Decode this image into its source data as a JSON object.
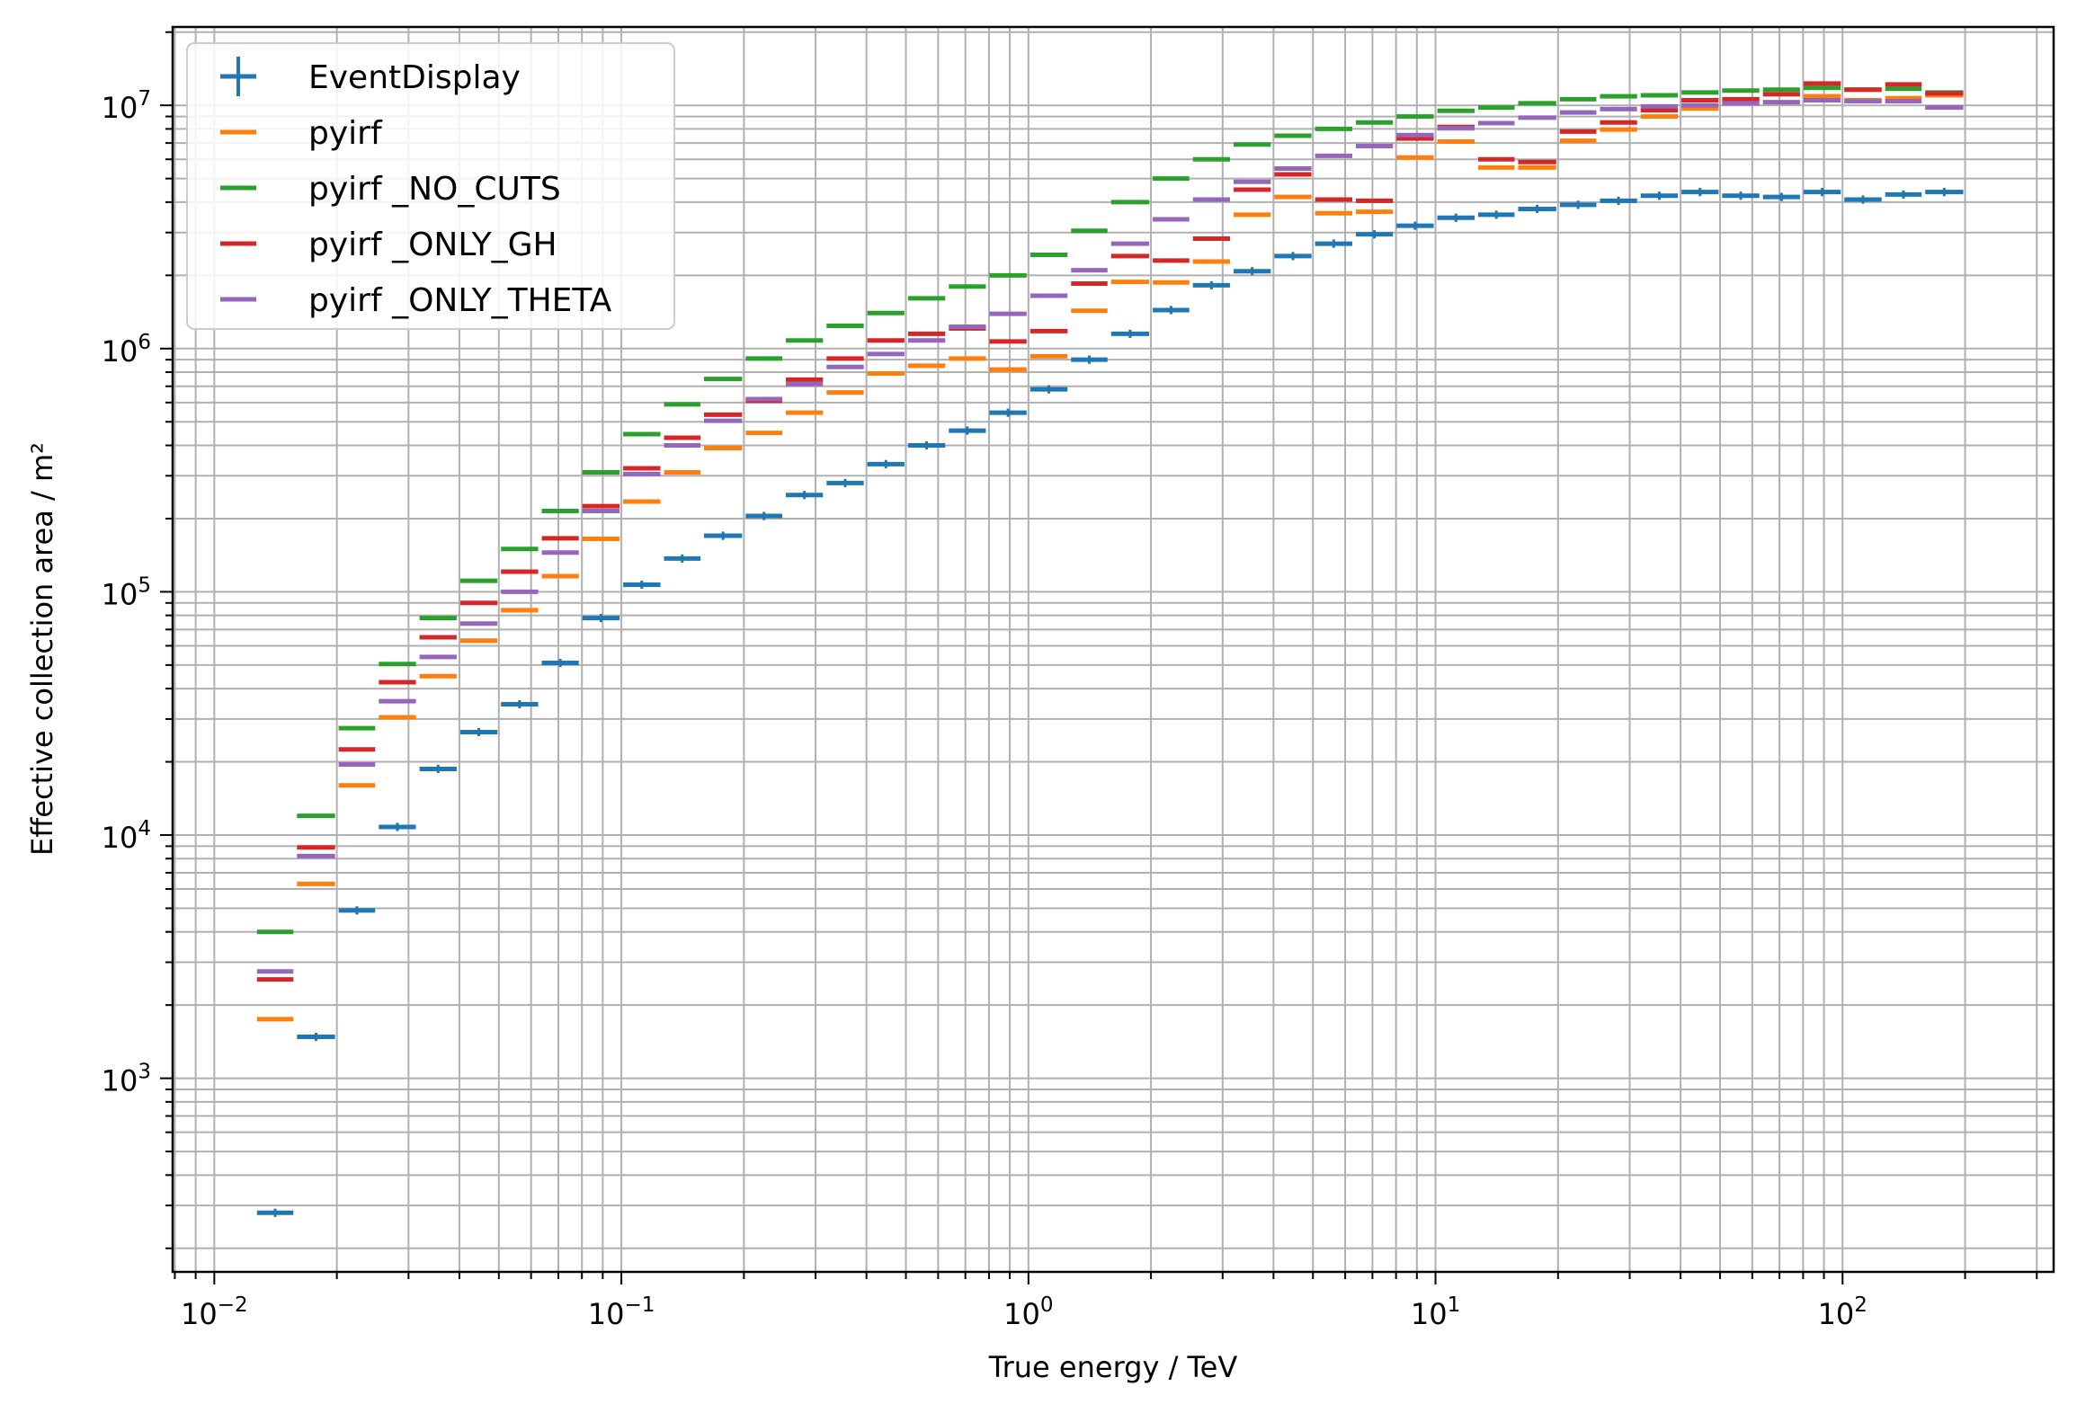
{
  "chart_data": {
    "type": "step-scatter",
    "xlabel": "True energy / TeV",
    "ylabel": "Effective collection area / m²",
    "xscale": "log",
    "yscale": "log",
    "xlim": [
      0.0079,
      330
    ],
    "ylim": [
      160,
      21000000
    ],
    "grid": "on (major and minor)",
    "legend_placement": "top-left",
    "x_tick_labels": [
      {
        "value": 0.01,
        "base": "10",
        "exp": "−2"
      },
      {
        "value": 0.1,
        "base": "10",
        "exp": "−1"
      },
      {
        "value": 1,
        "base": "10",
        "exp": "0"
      },
      {
        "value": 10,
        "base": "10",
        "exp": "1"
      },
      {
        "value": 100,
        "base": "10",
        "exp": "2"
      }
    ],
    "y_tick_labels": [
      {
        "value": 1000,
        "base": "10",
        "exp": "3"
      },
      {
        "value": 10000,
        "base": "10",
        "exp": "4"
      },
      {
        "value": 100000,
        "base": "10",
        "exp": "5"
      },
      {
        "value": 1000000,
        "base": "10",
        "exp": "6"
      },
      {
        "value": 10000000,
        "base": "10",
        "exp": "7"
      }
    ],
    "bin_edges_tev": [
      0.0126,
      0.0158,
      0.02,
      0.0251,
      0.0316,
      0.0398,
      0.0501,
      0.0631,
      0.0794,
      0.1,
      0.126,
      0.158,
      0.2,
      0.251,
      0.316,
      0.398,
      0.501,
      0.631,
      0.794,
      1.0,
      1.26,
      1.58,
      2.0,
      2.51,
      3.16,
      3.98,
      5.01,
      6.31,
      7.94,
      10.0,
      12.6,
      15.8,
      20.0,
      25.1,
      31.6,
      39.8,
      50.1,
      63.1,
      79.4,
      100,
      126,
      158,
      200
    ],
    "series": [
      {
        "name": "EventDisplay",
        "color": "#1f77b4",
        "marker": "errorbar",
        "bins": [
          [
            0.0126,
            0.0158
          ],
          [
            0.0158,
            0.02
          ],
          [
            0.02,
            0.0251
          ],
          [
            0.0251,
            0.0316
          ],
          [
            0.0316,
            0.0398
          ],
          [
            0.0398,
            0.0501
          ],
          [
            0.0501,
            0.0631
          ],
          [
            0.0631,
            0.0794
          ],
          [
            0.0794,
            0.1
          ],
          [
            0.1,
            0.126
          ],
          [
            0.126,
            0.158
          ],
          [
            0.158,
            0.2
          ],
          [
            0.2,
            0.251
          ],
          [
            0.251,
            0.316
          ],
          [
            0.316,
            0.398
          ],
          [
            0.398,
            0.501
          ],
          [
            0.501,
            0.631
          ],
          [
            0.631,
            0.794
          ],
          [
            0.794,
            1.0
          ],
          [
            1.0,
            1.26
          ],
          [
            1.26,
            1.58
          ],
          [
            1.58,
            2.0
          ],
          [
            2.0,
            2.51
          ],
          [
            2.51,
            3.16
          ],
          [
            3.16,
            3.98
          ],
          [
            3.98,
            5.01
          ],
          [
            5.01,
            6.31
          ],
          [
            6.31,
            7.94
          ],
          [
            7.94,
            10.0
          ],
          [
            10.0,
            12.6
          ],
          [
            12.6,
            15.8
          ],
          [
            15.8,
            20.0
          ],
          [
            20.0,
            25.1
          ],
          [
            25.1,
            31.6
          ],
          [
            31.6,
            39.8
          ],
          [
            39.8,
            50.1
          ],
          [
            50.1,
            63.1
          ],
          [
            63.1,
            79.4
          ],
          [
            79.4,
            100
          ],
          [
            100,
            126
          ],
          [
            126,
            158
          ],
          [
            158,
            200
          ]
        ],
        "values": [
          280,
          1480,
          4900,
          10800,
          18700,
          26500,
          34500,
          51000,
          78000,
          107000,
          137000,
          170000,
          205000,
          250000,
          280000,
          335000,
          400000,
          460000,
          545000,
          680000,
          900000,
          1150000,
          1440000,
          1820000,
          2080000,
          2400000,
          2700000,
          2950000,
          3200000,
          3450000,
          3550000,
          3750000,
          3900000,
          4050000,
          4250000,
          4400000,
          4250000,
          4200000,
          4400000,
          4100000,
          4300000,
          4400000
        ]
      },
      {
        "name": "pyirf",
        "color": "#ff7f0e",
        "marker": "bin-step",
        "bins": [
          [
            0.0126,
            0.0158
          ],
          [
            0.0158,
            0.02
          ],
          [
            0.02,
            0.0251
          ],
          [
            0.0251,
            0.0316
          ],
          [
            0.0316,
            0.0398
          ],
          [
            0.0398,
            0.0501
          ],
          [
            0.0501,
            0.0631
          ],
          [
            0.0631,
            0.0794
          ],
          [
            0.0794,
            0.1
          ],
          [
            0.1,
            0.126
          ],
          [
            0.126,
            0.158
          ],
          [
            0.158,
            0.2
          ],
          [
            0.2,
            0.251
          ],
          [
            0.251,
            0.316
          ],
          [
            0.316,
            0.398
          ],
          [
            0.398,
            0.501
          ],
          [
            0.501,
            0.631
          ],
          [
            0.631,
            0.794
          ],
          [
            0.794,
            1.0
          ],
          [
            1.0,
            1.26
          ],
          [
            1.26,
            1.58
          ],
          [
            1.58,
            2.0
          ],
          [
            2.0,
            2.51
          ],
          [
            2.51,
            3.16
          ],
          [
            3.16,
            3.98
          ],
          [
            3.98,
            5.01
          ],
          [
            5.01,
            6.31
          ],
          [
            6.31,
            7.94
          ],
          [
            7.94,
            10.0
          ],
          [
            10.0,
            12.6
          ],
          [
            12.6,
            15.8
          ],
          [
            15.8,
            20.0
          ],
          [
            20.0,
            25.1
          ],
          [
            25.1,
            31.6
          ],
          [
            31.6,
            39.8
          ],
          [
            39.8,
            50.1
          ],
          [
            50.1,
            63.1
          ],
          [
            63.1,
            79.4
          ],
          [
            79.4,
            100
          ],
          [
            100,
            126
          ],
          [
            126,
            158
          ],
          [
            158,
            200
          ]
        ],
        "values": [
          1750,
          6300,
          16000,
          30500,
          45000,
          63000,
          84000,
          116000,
          165000,
          235000,
          310000,
          390000,
          450000,
          545000,
          660000,
          790000,
          850000,
          910000,
          820000,
          930000,
          1430000,
          1880000,
          1870000,
          2280000,
          3550000,
          4200000,
          3600000,
          3650000,
          6100000,
          7100000,
          5550000,
          5550000,
          7150000,
          7950000,
          9000000,
          9700000,
          10200000,
          10300000,
          10900000,
          10500000,
          10700000,
          11000000
        ]
      },
      {
        "name": "pyirf _NO_CUTS",
        "color": "#2ca02c",
        "marker": "bin-step",
        "bins": [
          [
            0.0126,
            0.0158
          ],
          [
            0.0158,
            0.02
          ],
          [
            0.02,
            0.0251
          ],
          [
            0.0251,
            0.0316
          ],
          [
            0.0316,
            0.0398
          ],
          [
            0.0398,
            0.0501
          ],
          [
            0.0501,
            0.0631
          ],
          [
            0.0631,
            0.0794
          ],
          [
            0.0794,
            0.1
          ],
          [
            0.1,
            0.126
          ],
          [
            0.126,
            0.158
          ],
          [
            0.158,
            0.2
          ],
          [
            0.2,
            0.251
          ],
          [
            0.251,
            0.316
          ],
          [
            0.316,
            0.398
          ],
          [
            0.398,
            0.501
          ],
          [
            0.501,
            0.631
          ],
          [
            0.631,
            0.794
          ],
          [
            0.794,
            1.0
          ],
          [
            1.0,
            1.26
          ],
          [
            1.26,
            1.58
          ],
          [
            1.58,
            2.0
          ],
          [
            2.0,
            2.51
          ],
          [
            2.51,
            3.16
          ],
          [
            3.16,
            3.98
          ],
          [
            3.98,
            5.01
          ],
          [
            5.01,
            6.31
          ],
          [
            6.31,
            7.94
          ],
          [
            7.94,
            10.0
          ],
          [
            10.0,
            12.6
          ],
          [
            12.6,
            15.8
          ],
          [
            15.8,
            20.0
          ],
          [
            20.0,
            25.1
          ],
          [
            25.1,
            31.6
          ],
          [
            31.6,
            39.8
          ],
          [
            39.8,
            50.1
          ],
          [
            50.1,
            63.1
          ],
          [
            63.1,
            79.4
          ],
          [
            79.4,
            100
          ],
          [
            100,
            126
          ],
          [
            126,
            158
          ],
          [
            158,
            200
          ]
        ],
        "values": [
          4000,
          12000,
          27500,
          50500,
          78000,
          111000,
          150000,
          215000,
          310000,
          445000,
          590000,
          750000,
          910000,
          1080000,
          1240000,
          1400000,
          1610000,
          1800000,
          2000000,
          2430000,
          3050000,
          4000000,
          5000000,
          6000000,
          6900000,
          7500000,
          8000000,
          8500000,
          9000000,
          9500000,
          9800000,
          10200000,
          10600000,
          10900000,
          11000000,
          11300000,
          11500000,
          11600000,
          11800000,
          11600000,
          11700000,
          11300000
        ]
      },
      {
        "name": "pyirf _ONLY_GH",
        "color": "#d62728",
        "marker": "bin-step",
        "bins": [
          [
            0.0126,
            0.0158
          ],
          [
            0.0158,
            0.02
          ],
          [
            0.02,
            0.0251
          ],
          [
            0.0251,
            0.0316
          ],
          [
            0.0316,
            0.0398
          ],
          [
            0.0398,
            0.0501
          ],
          [
            0.0501,
            0.0631
          ],
          [
            0.0631,
            0.0794
          ],
          [
            0.0794,
            0.1
          ],
          [
            0.1,
            0.126
          ],
          [
            0.126,
            0.158
          ],
          [
            0.158,
            0.2
          ],
          [
            0.2,
            0.251
          ],
          [
            0.251,
            0.316
          ],
          [
            0.316,
            0.398
          ],
          [
            0.398,
            0.501
          ],
          [
            0.501,
            0.631
          ],
          [
            0.631,
            0.794
          ],
          [
            0.794,
            1.0
          ],
          [
            1.0,
            1.26
          ],
          [
            1.26,
            1.58
          ],
          [
            1.58,
            2.0
          ],
          [
            2.0,
            2.51
          ],
          [
            2.51,
            3.16
          ],
          [
            3.16,
            3.98
          ],
          [
            3.98,
            5.01
          ],
          [
            5.01,
            6.31
          ],
          [
            6.31,
            7.94
          ],
          [
            7.94,
            10.0
          ],
          [
            10.0,
            12.6
          ],
          [
            12.6,
            15.8
          ],
          [
            15.8,
            20.0
          ],
          [
            20.0,
            25.1
          ],
          [
            25.1,
            31.6
          ],
          [
            31.6,
            39.8
          ],
          [
            39.8,
            50.1
          ],
          [
            50.1,
            63.1
          ],
          [
            63.1,
            79.4
          ],
          [
            79.4,
            100
          ],
          [
            100,
            126
          ],
          [
            126,
            158
          ],
          [
            158,
            200
          ]
        ],
        "values": [
          2550,
          8900,
          22500,
          42500,
          65000,
          90000,
          121000,
          166000,
          225000,
          322000,
          430000,
          535000,
          610000,
          745000,
          910000,
          1080000,
          1150000,
          1210000,
          1070000,
          1180000,
          1850000,
          2400000,
          2300000,
          2830000,
          4500000,
          5200000,
          4100000,
          4050000,
          7300000,
          8150000,
          6000000,
          5850000,
          7800000,
          8500000,
          9550000,
          10500000,
          10600000,
          11100000,
          12300000,
          11600000,
          12200000,
          11200000
        ]
      },
      {
        "name": "pyirf _ONLY_THETA",
        "color": "#9467bd",
        "marker": "bin-step",
        "bins": [
          [
            0.0126,
            0.0158
          ],
          [
            0.0158,
            0.02
          ],
          [
            0.02,
            0.0251
          ],
          [
            0.0251,
            0.0316
          ],
          [
            0.0316,
            0.0398
          ],
          [
            0.0398,
            0.0501
          ],
          [
            0.0501,
            0.0631
          ],
          [
            0.0631,
            0.0794
          ],
          [
            0.0794,
            0.1
          ],
          [
            0.1,
            0.126
          ],
          [
            0.126,
            0.158
          ],
          [
            0.158,
            0.2
          ],
          [
            0.2,
            0.251
          ],
          [
            0.251,
            0.316
          ],
          [
            0.316,
            0.398
          ],
          [
            0.398,
            0.501
          ],
          [
            0.501,
            0.631
          ],
          [
            0.631,
            0.794
          ],
          [
            0.794,
            1.0
          ],
          [
            1.0,
            1.26
          ],
          [
            1.26,
            1.58
          ],
          [
            1.58,
            2.0
          ],
          [
            2.0,
            2.51
          ],
          [
            2.51,
            3.16
          ],
          [
            3.16,
            3.98
          ],
          [
            3.98,
            5.01
          ],
          [
            5.01,
            6.31
          ],
          [
            6.31,
            7.94
          ],
          [
            7.94,
            10.0
          ],
          [
            10.0,
            12.6
          ],
          [
            12.6,
            15.8
          ],
          [
            15.8,
            20.0
          ],
          [
            20.0,
            25.1
          ],
          [
            25.1,
            31.6
          ],
          [
            31.6,
            39.8
          ],
          [
            39.8,
            50.1
          ],
          [
            50.1,
            63.1
          ],
          [
            63.1,
            79.4
          ],
          [
            79.4,
            100
          ],
          [
            100,
            126
          ],
          [
            126,
            158
          ],
          [
            158,
            200
          ]
        ],
        "values": [
          2750,
          8200,
          19500,
          35500,
          54000,
          74000,
          100000,
          145000,
          215000,
          305000,
          400000,
          505000,
          620000,
          715000,
          840000,
          950000,
          1080000,
          1230000,
          1390000,
          1650000,
          2100000,
          2700000,
          3400000,
          4100000,
          4850000,
          5500000,
          6200000,
          6800000,
          7550000,
          8050000,
          8450000,
          8900000,
          9350000,
          9650000,
          9900000,
          10000000,
          10200000,
          10300000,
          10500000,
          10400000,
          10400000,
          9800000
        ]
      }
    ]
  }
}
